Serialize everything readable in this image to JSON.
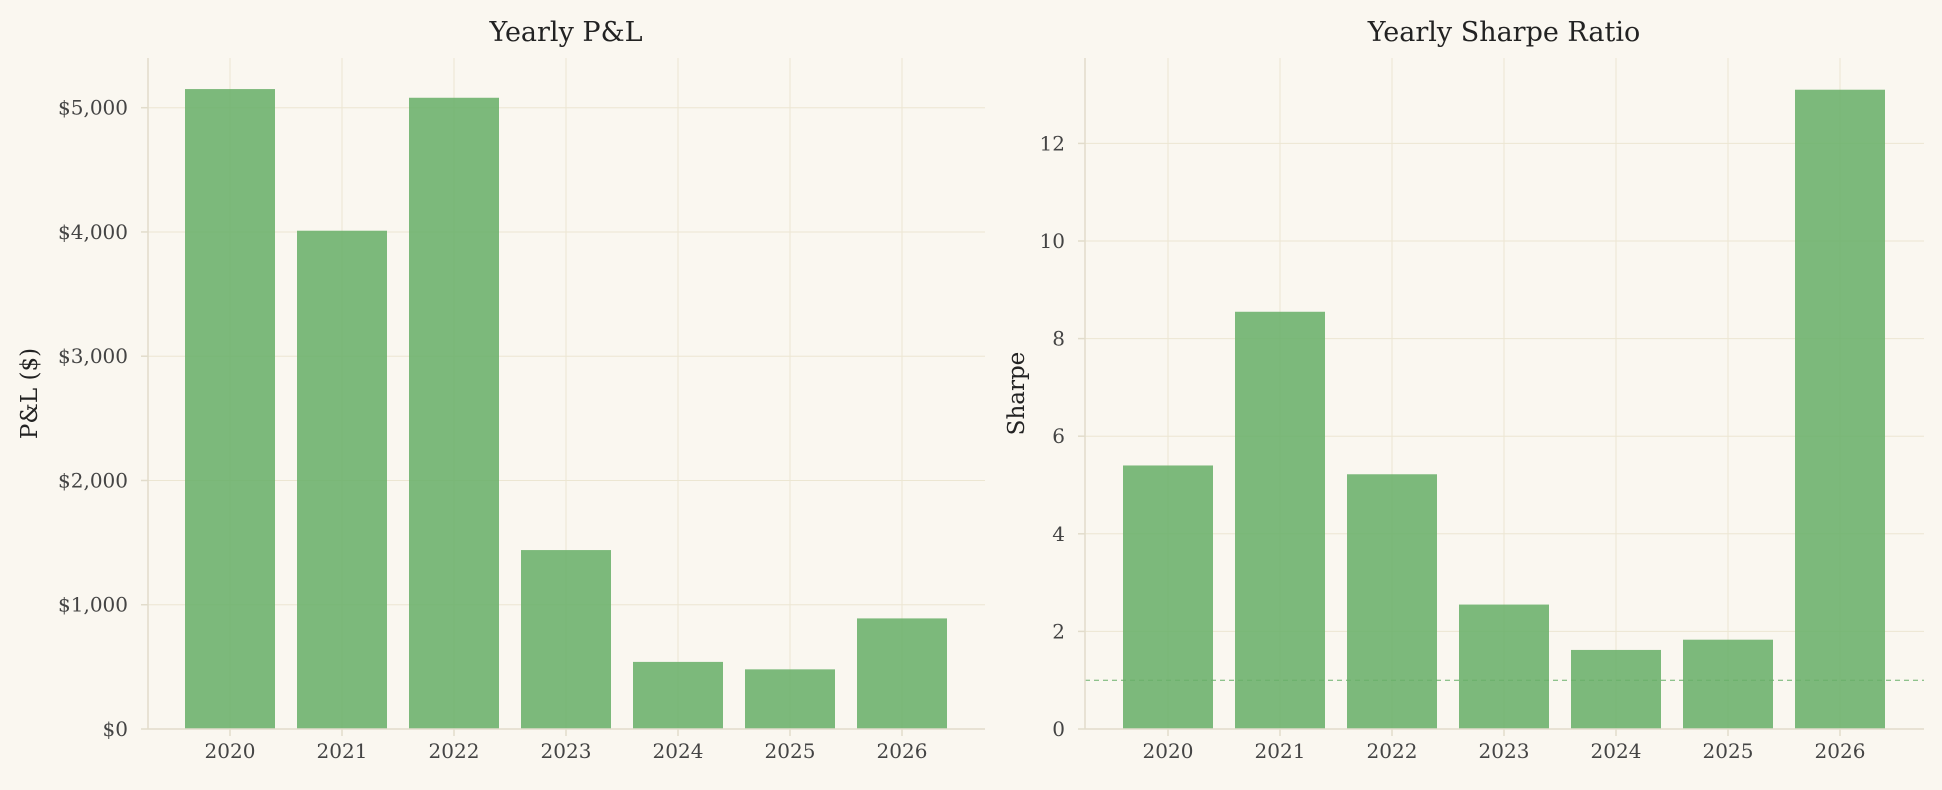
{
  "colors": {
    "background": "#faf7f0",
    "bar": "#6ab06a",
    "grid": "#ece6d2",
    "axis": "#e2dccb",
    "reference_line": "#6ab06a",
    "text": "#222222",
    "tick_text": "#444444"
  },
  "chart_data": [
    {
      "type": "bar",
      "title": "Yearly P&L",
      "xlabel": "",
      "ylabel": "P&L ($)",
      "categories": [
        "2020",
        "2021",
        "2022",
        "2023",
        "2024",
        "2025",
        "2026"
      ],
      "values": [
        5150,
        4010,
        5080,
        1440,
        540,
        480,
        890
      ],
      "ylim": [
        0,
        5400
      ],
      "yticks": [
        0,
        1000,
        2000,
        3000,
        4000,
        5000
      ],
      "ytick_labels": [
        "$0",
        "$1,000",
        "$2,000",
        "$3,000",
        "$4,000",
        "$5,000"
      ],
      "grid": true,
      "legend": "none"
    },
    {
      "type": "bar",
      "title": "Yearly Sharpe Ratio",
      "xlabel": "",
      "ylabel": "Sharpe",
      "categories": [
        "2020",
        "2021",
        "2022",
        "2023",
        "2024",
        "2025",
        "2026"
      ],
      "values": [
        5.4,
        8.55,
        5.22,
        2.55,
        1.62,
        1.83,
        13.1
      ],
      "ylim": [
        0,
        13.75
      ],
      "yticks": [
        0,
        2,
        4,
        6,
        8,
        10,
        12
      ],
      "ytick_labels": [
        "0",
        "2",
        "4",
        "6",
        "8",
        "10",
        "12"
      ],
      "reference_line": 1,
      "grid": true,
      "legend": "none"
    }
  ]
}
